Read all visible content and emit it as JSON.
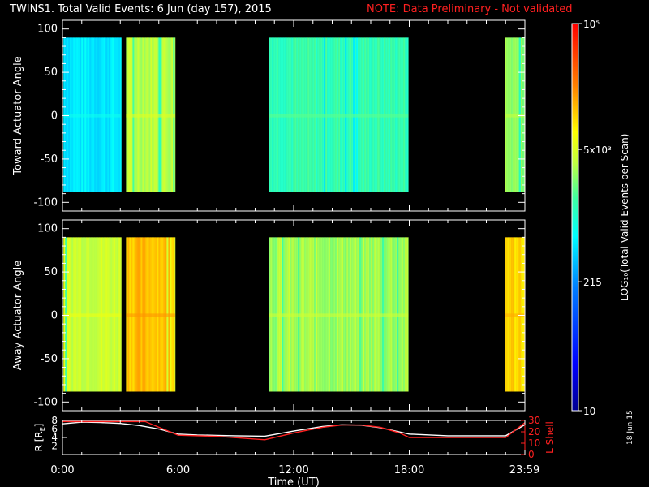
{
  "header": {
    "title": "TWINS1. Total Valid Events:  6 Jun (day 157), 2015",
    "note": "NOTE: Data Preliminary - Not validated"
  },
  "side_date": "18 Jun 15",
  "colors": {
    "background": "#000000",
    "axis": "#ffffff",
    "note": "#ff2020",
    "l_shell": "#ff2020",
    "radius": "#ffffff"
  },
  "chart_data": [
    {
      "type": "heatmap",
      "panel": "top",
      "ylabel": "Toward Actuator Angle",
      "ylim": [
        -110,
        110
      ],
      "y_ticks": [
        100,
        50,
        0,
        -50,
        -100
      ],
      "y_tick_labels": [
        "100",
        "50",
        "0",
        "-50",
        "-100"
      ],
      "angle_range": [
        -88,
        90
      ],
      "xlim_hours": [
        0,
        24
      ],
      "segments": [
        {
          "start": 0.05,
          "end": 3.05,
          "level": 0.43,
          "color": "cyan-blue"
        },
        {
          "start": 3.3,
          "end": 5.85,
          "level": 0.64,
          "color": "yellow-green"
        },
        {
          "start": 10.7,
          "end": 17.95,
          "level": 0.53,
          "color": "green-cyan"
        },
        {
          "start": 22.95,
          "end": 24.0,
          "level": 0.61,
          "color": "yellow-green"
        }
      ]
    },
    {
      "type": "heatmap",
      "panel": "middle",
      "ylabel": "Away Actuator Angle",
      "ylim": [
        -110,
        110
      ],
      "y_ticks": [
        100,
        50,
        0,
        -50,
        -100
      ],
      "y_tick_labels": [
        "100",
        "50",
        "0",
        "-50",
        "-100"
      ],
      "angle_range": [
        -88,
        90
      ],
      "xlim_hours": [
        0,
        24
      ],
      "segments": [
        {
          "start": 0.05,
          "end": 3.05,
          "level": 0.66,
          "color": "yellow-green"
        },
        {
          "start": 3.3,
          "end": 5.85,
          "level": 0.78,
          "color": "orange"
        },
        {
          "start": 10.7,
          "end": 17.95,
          "level": 0.62,
          "color": "yellow-green"
        },
        {
          "start": 22.95,
          "end": 24.0,
          "level": 0.76,
          "color": "orange"
        }
      ]
    },
    {
      "type": "line",
      "panel": "bottom",
      "xlabel": "Time (UT)",
      "x_tick_labels": [
        "0:00",
        "6:00",
        "12:00",
        "18:00",
        "23:59"
      ],
      "x_ticks_hours": [
        0,
        6,
        12,
        18,
        23.98
      ],
      "left_axis": {
        "label": "R [R_E]",
        "ylim": [
          0,
          8
        ],
        "ticks": [
          8,
          6,
          4,
          2
        ],
        "tick_labels": [
          "8",
          "6",
          "4",
          "2"
        ]
      },
      "right_axis": {
        "label": "L Shell",
        "ylim": [
          0,
          30
        ],
        "ticks": [
          30,
          20,
          10,
          0
        ],
        "tick_labels": [
          "30",
          "20",
          "10",
          "0"
        ]
      },
      "series": [
        {
          "name": "R",
          "axis": "left",
          "x": [
            0,
            1,
            2,
            3,
            4,
            5,
            6,
            7,
            8,
            9,
            10.5,
            12,
            13.5,
            14.5,
            15.5,
            16.5,
            18,
            20,
            22,
            23,
            24
          ],
          "y": [
            7.2,
            7.6,
            7.5,
            7.3,
            6.8,
            6.0,
            4.8,
            4.6,
            4.5,
            4.4,
            4.3,
            5.5,
            6.6,
            7.0,
            6.9,
            6.3,
            4.8,
            4.4,
            4.4,
            4.4,
            7.0
          ]
        },
        {
          "name": "L Shell",
          "axis": "right",
          "x": [
            0,
            0.5,
            4.3,
            6,
            8,
            10.5,
            12,
            13.5,
            14.5,
            15.5,
            16.5,
            17.5,
            18,
            20,
            22,
            23,
            24
          ],
          "y": [
            29,
            29,
            29,
            17,
            16,
            13,
            19,
            24,
            26,
            26,
            24,
            19,
            15,
            15,
            15,
            15,
            28
          ]
        }
      ]
    },
    {
      "type": "colorbar",
      "label": "LOG₁₀(Total Valid Events per Scan)",
      "scale": "log",
      "range": [
        10,
        100000
      ],
      "tick_values": [
        100000,
        5000,
        215,
        10
      ],
      "tick_labels": [
        "10⁵",
        "5x10³",
        "215",
        "10"
      ]
    }
  ]
}
